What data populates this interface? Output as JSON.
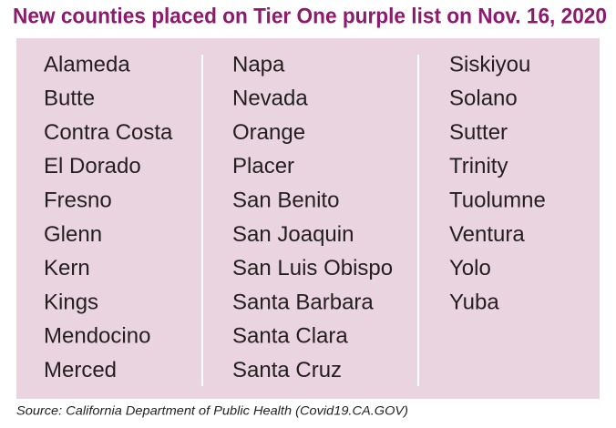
{
  "title": "New counties placed on Tier One purple list on Nov. 16, 2020",
  "columns": [
    [
      "Alameda",
      "Butte",
      "Contra Costa",
      "El Dorado",
      "Fresno",
      "Glenn",
      "Kern",
      "Kings",
      "Mendocino",
      "Merced"
    ],
    [
      "Napa",
      "Nevada",
      "Orange",
      "Placer",
      "San Benito",
      "San Joaquin",
      "San Luis Obispo",
      "Santa Barbara",
      "Santa Clara",
      "Santa Cruz"
    ],
    [
      "Siskiyou",
      "Solano",
      "Sutter",
      "Trinity",
      "Tuolumne",
      "Ventura",
      "Yolo",
      "Yuba"
    ]
  ],
  "source": "Source: California Department of Public Health (Covid19.CA.GOV)"
}
